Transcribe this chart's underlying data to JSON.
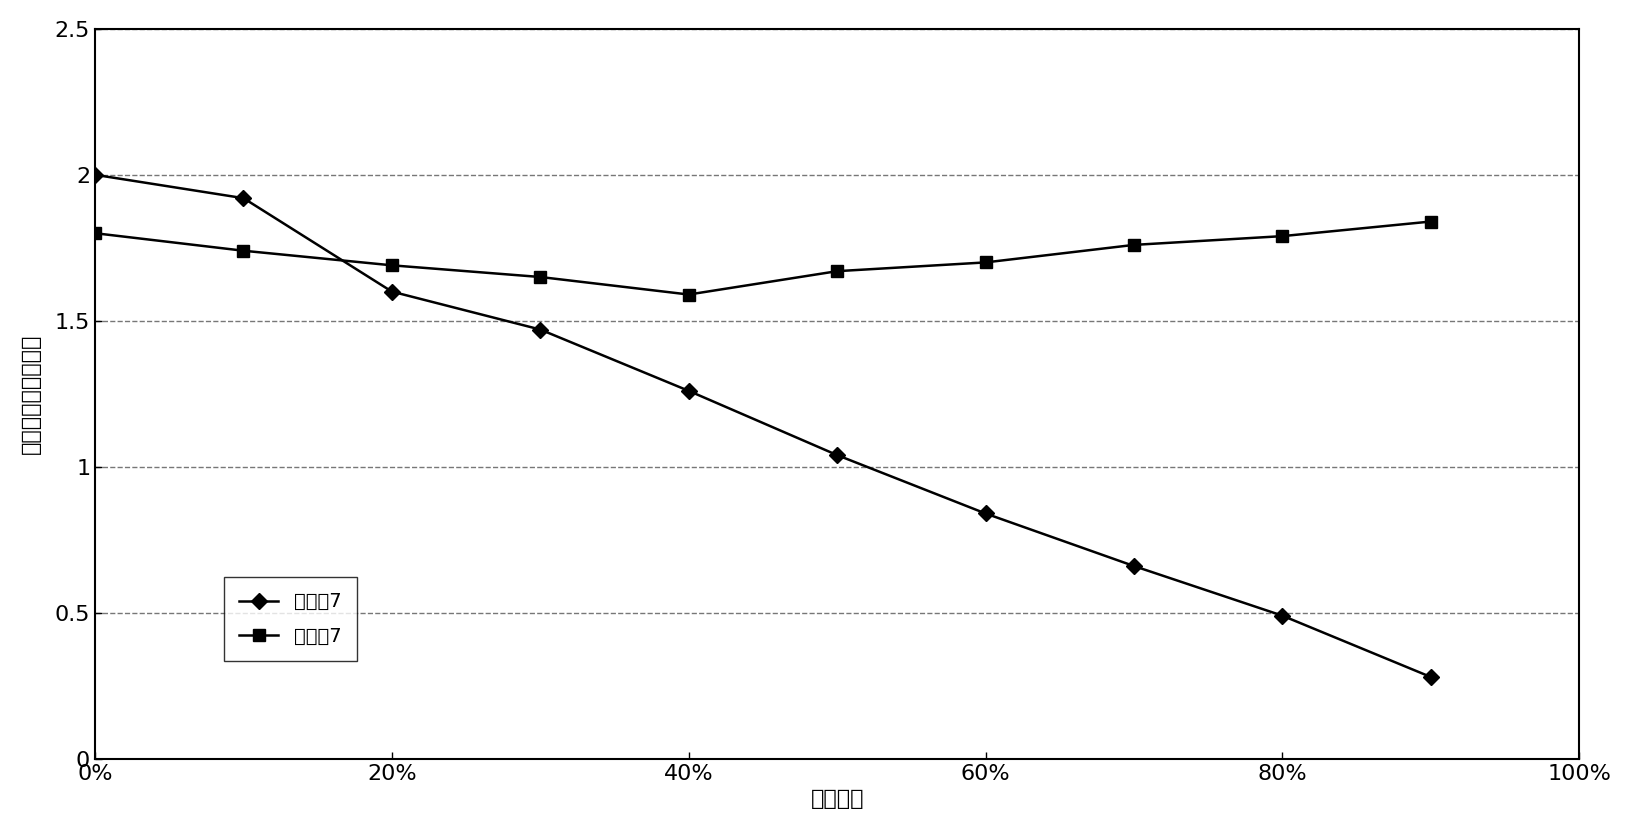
{
  "x_values": [
    0,
    10,
    20,
    30,
    40,
    50,
    60,
    70,
    80,
    90
  ],
  "series1_label": "对比例7",
  "series1_values": [
    2.0,
    1.92,
    1.6,
    1.47,
    1.26,
    1.04,
    0.84,
    0.66,
    0.49,
    0.28
  ],
  "series1_color": "#000000",
  "series1_marker": "D",
  "series2_label": "实施例7",
  "series2_values": [
    1.8,
    1.74,
    1.69,
    1.65,
    1.59,
    1.67,
    1.7,
    1.76,
    1.79,
    1.84
  ],
  "series2_color": "#000000",
  "series2_marker": "s",
  "xlabel": "凝固分率",
  "ylabel": "电阴率（欧姆厘米）",
  "xlim": [
    0,
    100
  ],
  "ylim": [
    0,
    2.5
  ],
  "yticks": [
    0,
    0.5,
    1.0,
    1.5,
    2.0,
    2.5
  ],
  "ytick_labels": [
    "0",
    "0.5",
    "1",
    "1.5",
    "2",
    "2.5"
  ],
  "xtick_labels": [
    "0%",
    "20%",
    "40%",
    "60%",
    "80%",
    "100%"
  ],
  "xtick_positions": [
    0,
    20,
    40,
    60,
    80,
    100
  ],
  "grid_color": "#555555",
  "background_color": "#ffffff",
  "legend_loc": "lower left",
  "label_fontsize": 16,
  "tick_fontsize": 16,
  "legend_fontsize": 14
}
